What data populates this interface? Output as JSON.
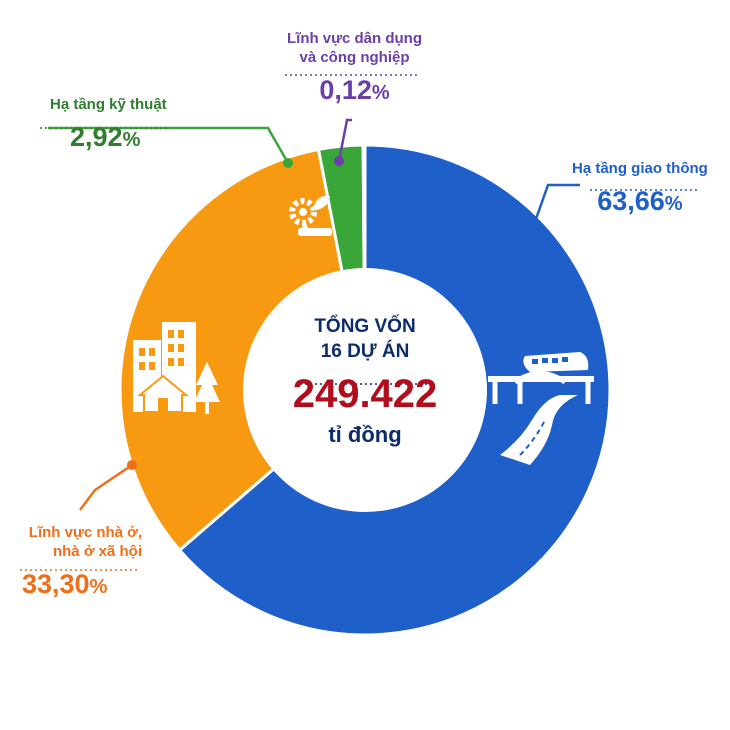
{
  "chart_data": {
    "type": "pie",
    "variant": "donut",
    "categories": [
      "Hạ tầng giao thông",
      "Lĩnh vực nhà ở, nhà ở xã hội",
      "Hạ tầng kỹ thuật",
      "Lĩnh vực dân dụng và công nghiệp"
    ],
    "values": [
      63.66,
      33.3,
      2.92,
      0.12
    ],
    "colors": [
      "#1f5fc9",
      "#f79a12",
      "#3aa63a",
      "#6a3fa8"
    ],
    "unit": "%",
    "labels": {
      "transport": {
        "name": "Hạ tầng giao thông",
        "value": "63,66",
        "unit": "%"
      },
      "housing": {
        "name_line1": "Lĩnh vực nhà ở,",
        "name_line2": "nhà ở xã hội",
        "value": "33,30",
        "unit": "%"
      },
      "technical": {
        "name": "Hạ tầng kỹ thuật",
        "value": "2,92",
        "unit": "%"
      },
      "civil": {
        "name_line1": "Lĩnh vực dân dụng",
        "name_line2": "và công nghiệp",
        "value": "0,12",
        "unit": "%"
      }
    },
    "center": {
      "line1": "TỔNG VỐN",
      "line2": "16 DỰ ÁN",
      "total": "249.422",
      "unit": "tỉ đồng"
    },
    "icons": [
      "train-bridge-road-icon",
      "city-buildings-icon",
      "gear-leaf-icon"
    ]
  }
}
